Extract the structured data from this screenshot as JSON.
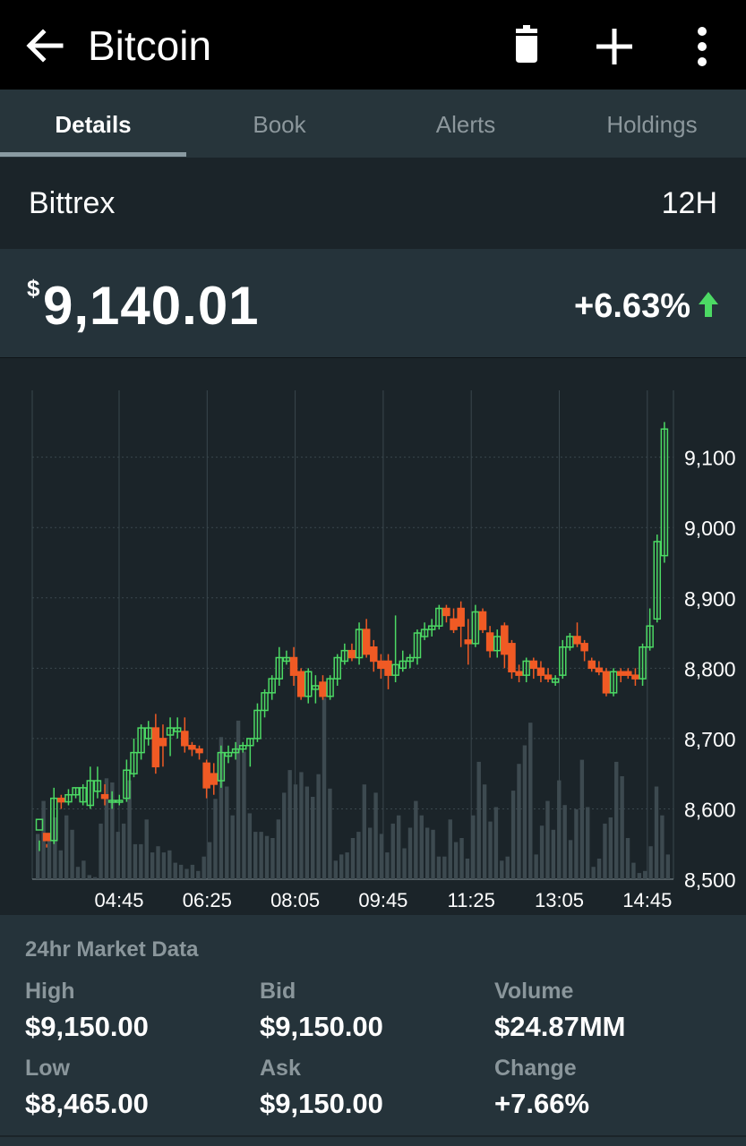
{
  "header": {
    "title": "Bitcoin",
    "icons": [
      "back-arrow-icon",
      "trash-icon",
      "plus-icon",
      "more-vert-icon"
    ]
  },
  "tabs": [
    {
      "label": "Details",
      "active": true
    },
    {
      "label": "Book",
      "active": false
    },
    {
      "label": "Alerts",
      "active": false
    },
    {
      "label": "Holdings",
      "active": false
    }
  ],
  "exchange": {
    "name": "Bittrex",
    "period": "12H"
  },
  "price": {
    "currency": "$",
    "value": "9,140.01",
    "change": "+6.63%",
    "direction": "up"
  },
  "colors": {
    "up": "#4cd964",
    "down": "#f05a24",
    "volume": "#3d4a50",
    "background": "#1b2429",
    "panel": "#25333a"
  },
  "chart_data": {
    "type": "candlestick",
    "x_ticks": [
      "04:45",
      "06:25",
      "08:05",
      "09:45",
      "11:25",
      "13:05",
      "14:45"
    ],
    "y_ticks": [
      "9,100",
      "9,000",
      "8,900",
      "8,800",
      "8,700",
      "8,600",
      "8,500"
    ],
    "ylim": [
      8500,
      9195
    ],
    "grid": true,
    "y_axis_position": "right",
    "candles": [
      [
        8570,
        8585,
        8555,
        8540
      ],
      [
        8565,
        8555,
        8550,
        8545
      ],
      [
        8555,
        8615,
        8630,
        8550
      ],
      [
        8615,
        8610,
        8620,
        8600
      ],
      [
        8610,
        8620,
        8628,
        8605
      ],
      [
        8620,
        8630,
        8630,
        8615
      ],
      [
        8610,
        8630,
        8635,
        8605
      ],
      [
        8605,
        8640,
        8660,
        8600
      ],
      [
        8625,
        8640,
        8660,
        8615
      ],
      [
        8620,
        8615,
        8635,
        8605
      ],
      [
        8610,
        8612,
        8625,
        8600
      ],
      [
        8610,
        8612,
        8620,
        8605
      ],
      [
        8615,
        8655,
        8670,
        8610
      ],
      [
        8650,
        8680,
        8700,
        8645
      ],
      [
        8680,
        8715,
        8720,
        8670
      ],
      [
        8700,
        8715,
        8725,
        8690
      ],
      [
        8715,
        8660,
        8735,
        8650
      ],
      [
        8700,
        8690,
        8720,
        8660
      ],
      [
        8705,
        8715,
        8730,
        8675
      ],
      [
        8710,
        8715,
        8730,
        8700
      ],
      [
        8710,
        8690,
        8730,
        8680
      ],
      [
        8690,
        8685,
        8695,
        8675
      ],
      [
        8685,
        8680,
        8690,
        8670
      ],
      [
        8665,
        8630,
        8670,
        8615
      ],
      [
        8650,
        8635,
        8665,
        8620
      ],
      [
        8640,
        8680,
        8690,
        8630
      ],
      [
        8675,
        8680,
        8690,
        8665
      ],
      [
        8680,
        8685,
        8695,
        8670
      ],
      [
        8685,
        8690,
        8695,
        8680
      ],
      [
        8690,
        8700,
        8700,
        8660
      ],
      [
        8700,
        8740,
        8750,
        8695
      ],
      [
        8740,
        8765,
        8770,
        8730
      ],
      [
        8765,
        8785,
        8790,
        8755
      ],
      [
        8785,
        8815,
        8830,
        8775
      ],
      [
        8810,
        8815,
        8825,
        8805
      ],
      [
        8815,
        8790,
        8830,
        8775
      ],
      [
        8795,
        8760,
        8800,
        8755
      ],
      [
        8760,
        8795,
        8800,
        8750
      ],
      [
        8770,
        8775,
        8790,
        8750
      ],
      [
        8780,
        8760,
        8790,
        8755
      ],
      [
        8760,
        8785,
        8790,
        8755
      ],
      [
        8785,
        8815,
        8820,
        8775
      ],
      [
        8810,
        8825,
        8835,
        8805
      ],
      [
        8825,
        8815,
        8835,
        8810
      ],
      [
        8815,
        8855,
        8865,
        8805
      ],
      [
        8855,
        8820,
        8870,
        8815
      ],
      [
        8830,
        8810,
        8840,
        8795
      ],
      [
        8810,
        8800,
        8820,
        8785
      ],
      [
        8810,
        8790,
        8820,
        8770
      ],
      [
        8790,
        8805,
        8875,
        8780
      ],
      [
        8800,
        8810,
        8825,
        8795
      ],
      [
        8810,
        8815,
        8820,
        8800
      ],
      [
        8815,
        8850,
        8855,
        8805
      ],
      [
        8845,
        8855,
        8865,
        8840
      ],
      [
        8855,
        8860,
        8870,
        8845
      ],
      [
        8860,
        8885,
        8890,
        8855
      ],
      [
        8885,
        8875,
        8890,
        8865
      ],
      [
        8870,
        8855,
        8885,
        8850
      ],
      [
        8885,
        8860,
        8895,
        8830
      ],
      [
        8840,
        8835,
        8870,
        8805
      ],
      [
        8835,
        8880,
        8890,
        8830
      ],
      [
        8880,
        8855,
        8885,
        8850
      ],
      [
        8850,
        8825,
        8860,
        8815
      ],
      [
        8825,
        8845,
        8855,
        8815
      ],
      [
        8860,
        8820,
        8865,
        8800
      ],
      [
        8835,
        8795,
        8840,
        8785
      ],
      [
        8795,
        8790,
        8805,
        8780
      ],
      [
        8790,
        8810,
        8815,
        8780
      ],
      [
        8810,
        8800,
        8815,
        8785
      ],
      [
        8800,
        8790,
        8810,
        8780
      ],
      [
        8790,
        8785,
        8800,
        8780
      ],
      [
        8780,
        8785,
        8790,
        8775
      ],
      [
        8790,
        8830,
        8840,
        8785
      ],
      [
        8830,
        8845,
        8850,
        8825
      ],
      [
        8845,
        8835,
        8865,
        8830
      ],
      [
        8835,
        8825,
        8840,
        8810
      ],
      [
        8810,
        8800,
        8815,
        8795
      ],
      [
        8800,
        8795,
        8810,
        8790
      ],
      [
        8795,
        8765,
        8800,
        8760
      ],
      [
        8765,
        8795,
        8800,
        8760
      ],
      [
        8795,
        8790,
        8800,
        8780
      ],
      [
        8795,
        8790,
        8800,
        8785
      ],
      [
        8790,
        8785,
        8800,
        8775
      ],
      [
        8785,
        8830,
        8835,
        8775
      ],
      [
        8830,
        8860,
        8885,
        8825
      ],
      [
        8870,
        8980,
        8990,
        8865
      ],
      [
        8960,
        9140,
        9150,
        8950
      ]
    ],
    "volumes": [
      0.22,
      0.38,
      0.21,
      0.3,
      0.14,
      0.31,
      0.24,
      0.06,
      0.09,
      0.02,
      0.01,
      0.27,
      0.49,
      0.47,
      0.23,
      0.27,
      0.48,
      0.17,
      0.17,
      0.29,
      0.13,
      0.16,
      0.13,
      0.14,
      0.08,
      0.07,
      0.05,
      0.07,
      0.04,
      0.11,
      0.18,
      0.39,
      0.69,
      0.45,
      0.31,
      0.77,
      0.62,
      0.32,
      0.23,
      0.23,
      0.21,
      0.2,
      0.29,
      0.42,
      0.53,
      0.46,
      0.52,
      0.45,
      0.4,
      0.51,
      0.88,
      0.44,
      0.09,
      0.12,
      0.13,
      0.2,
      0.23,
      0.46,
      0.25,
      0.42,
      0.22,
      0.13,
      0.27,
      0.31,
      0.15,
      0.25,
      0.38,
      0.31,
      0.25,
      0.24,
      0.11,
      0.11,
      0.29,
      0.18,
      0.2,
      0.1,
      0.31,
      0.57,
      0.46,
      0.28,
      0.35,
      0.09,
      0.11,
      0.43,
      0.56,
      0.65,
      0.76
    ],
    "vol_extra": [
      0.12,
      0.26,
      0.38,
      0.24,
      0.48,
      0.36,
      0.19,
      0.34,
      0.58,
      0.35,
      0.06,
      0.1,
      0.27,
      0.3,
      0.57,
      0.5,
      0.2,
      0.08,
      0.03,
      0.04,
      0.16,
      0.45,
      0.31,
      0.12
    ]
  },
  "market_data": {
    "heading": "24hr Market Data",
    "items": [
      {
        "label": "High",
        "value": "$9,150.00"
      },
      {
        "label": "Bid",
        "value": "$9,150.00"
      },
      {
        "label": "Volume",
        "value": "$24.87MM"
      },
      {
        "label": "Low",
        "value": "$8,465.00"
      },
      {
        "label": "Ask",
        "value": "$9,150.00"
      },
      {
        "label": "Change",
        "value": "+7.66%"
      }
    ]
  }
}
